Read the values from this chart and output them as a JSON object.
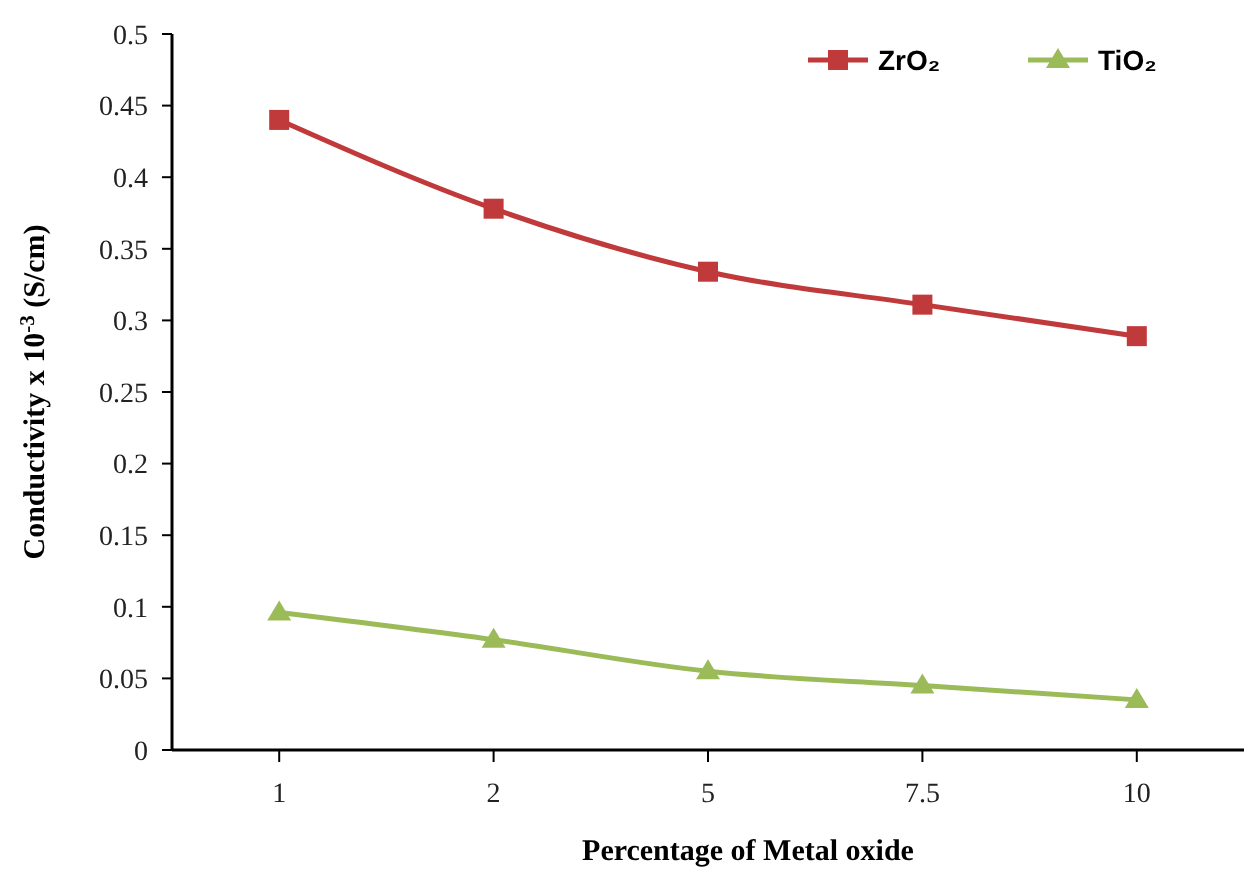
{
  "chart_data": {
    "type": "line",
    "xlabel": "Percentage of Metal oxide",
    "ylabel": "Conductivity x 10$^{-3}$ (S/cm)",
    "categories": [
      "1",
      "2",
      "5",
      "7.5",
      "10"
    ],
    "series": [
      {
        "name": "ZrO₂",
        "color": "#c0393b",
        "marker": "square",
        "values": [
          0.44,
          0.378,
          0.334,
          0.311,
          0.289
        ]
      },
      {
        "name": "TiO₂",
        "color": "#9bbb59",
        "marker": "triangle",
        "values": [
          0.096,
          0.077,
          0.055,
          0.045,
          0.035
        ]
      }
    ],
    "ylim": [
      0,
      0.5
    ],
    "yticks": [
      0,
      0.05,
      0.1,
      0.15,
      0.2,
      0.25,
      0.3,
      0.35,
      0.4,
      0.45,
      0.5
    ],
    "grid": false,
    "legend": "top right"
  }
}
